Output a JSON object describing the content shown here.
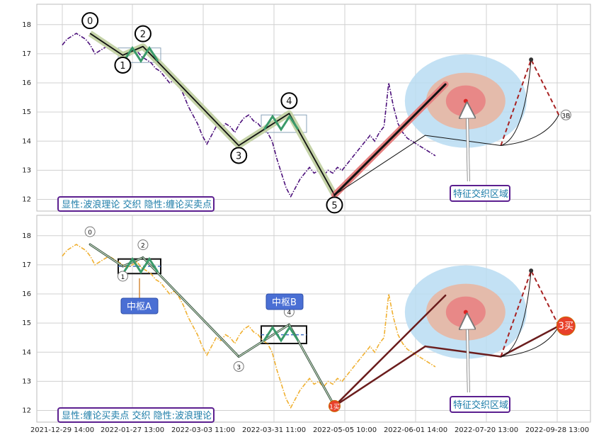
{
  "chart_data": [
    {
      "type": "line",
      "panel": "top",
      "title": "",
      "xlabel": "",
      "ylabel": "",
      "ylim": [
        11.6,
        18.7
      ],
      "y_ticks": [
        12,
        13,
        14,
        15,
        16,
        17,
        18
      ],
      "grid": true,
      "series": [
        {
          "kind": "price",
          "color": "#4b0f7a",
          "style": "dash-dot",
          "y": [
            17.3,
            17.5,
            17.6,
            17.7,
            17.6,
            17.5,
            17.3,
            17.0,
            17.1,
            17.2,
            17.3,
            17.2,
            17.1,
            17.0,
            16.9,
            17.0,
            17.1,
            16.9,
            16.8,
            16.7,
            16.5,
            16.4,
            16.2,
            16.0,
            16.1,
            15.9,
            15.6,
            15.2,
            14.9,
            14.6,
            14.2,
            13.9,
            14.2,
            14.5,
            14.4,
            14.6,
            14.5,
            14.3,
            14.6,
            14.8,
            14.9,
            14.7,
            14.6,
            14.4,
            14.3,
            14.0,
            13.4,
            12.9,
            12.4,
            12.1,
            12.4,
            12.7,
            12.9,
            13.1,
            12.9,
            13.0,
            12.8,
            13.0,
            12.9,
            13.1,
            13.0,
            13.2,
            13.4,
            13.6,
            13.8,
            14.0,
            14.2,
            14.0,
            14.3,
            14.5,
            16.0,
            15.2,
            14.6,
            14.3,
            14.1,
            14.0,
            13.9,
            13.8,
            13.7,
            13.6,
            13.5
          ]
        }
      ],
      "points": [
        {
          "label": "0",
          "x": 0.055,
          "y": 17.7
        },
        {
          "label": "1",
          "x": 0.12,
          "y": 16.95
        },
        {
          "label": "2",
          "x": 0.16,
          "y": 17.25
        },
        {
          "label": "3",
          "x": 0.35,
          "y": 13.85
        },
        {
          "label": "4",
          "x": 0.45,
          "y": 14.95
        },
        {
          "label": "5",
          "x": 0.54,
          "y": 12.15
        },
        {
          "label": "",
          "x": 0.76,
          "y": 15.95
        },
        {
          "label": "",
          "x": 0.87,
          "y": 13.85
        },
        {
          "label": "",
          "x": 0.93,
          "y": 16.8
        },
        {
          "label": "3B",
          "x": 0.985,
          "y": 14.9
        }
      ],
      "annotations": [
        {
          "text": "特征交织区域"
        },
        {
          "text": "显性:波浪理论 交织 隐性:缠论买卖点"
        }
      ]
    },
    {
      "type": "line",
      "panel": "bottom",
      "title": "",
      "xlabel": "",
      "ylabel": "",
      "ylim": [
        11.6,
        18.7
      ],
      "y_ticks": [
        12,
        13,
        14,
        15,
        16,
        17,
        18
      ],
      "grid": true,
      "x_ticks": [
        "2021-12-29 14:00",
        "2022-01-27 13:00",
        "2022-03-03 11:00",
        "2022-03-31 11:00",
        "2022-05-05 10:00",
        "2022-06-01 14:00",
        "2022-07-20 13:00",
        "2022-09-28 13:00"
      ],
      "series": [
        {
          "kind": "price",
          "color": "#f0b030",
          "style": "dash-dot",
          "y": [
            17.3,
            17.5,
            17.6,
            17.7,
            17.6,
            17.5,
            17.3,
            17.0,
            17.1,
            17.2,
            17.3,
            17.2,
            17.1,
            17.0,
            16.9,
            17.0,
            17.1,
            16.9,
            16.8,
            16.7,
            16.5,
            16.4,
            16.2,
            16.0,
            16.1,
            15.9,
            15.6,
            15.2,
            14.9,
            14.6,
            14.2,
            13.9,
            14.2,
            14.5,
            14.4,
            14.6,
            14.5,
            14.3,
            14.6,
            14.8,
            14.9,
            14.7,
            14.6,
            14.4,
            14.3,
            14.0,
            13.4,
            12.9,
            12.4,
            12.1,
            12.4,
            12.7,
            12.9,
            13.1,
            12.9,
            13.0,
            12.8,
            13.0,
            12.9,
            13.1,
            13.0,
            13.2,
            13.4,
            13.6,
            13.8,
            14.0,
            14.2,
            14.0,
            14.3,
            14.5,
            16.0,
            15.2,
            14.6,
            14.3,
            14.1,
            14.0,
            13.9,
            13.8,
            13.7,
            13.6,
            13.5
          ]
        }
      ],
      "points": [
        {
          "label": "0",
          "x": 0.055,
          "y": 17.7
        },
        {
          "label": "1",
          "x": 0.12,
          "y": 16.95
        },
        {
          "label": "2",
          "x": 0.16,
          "y": 17.25
        },
        {
          "label": "3",
          "x": 0.35,
          "y": 13.85
        },
        {
          "label": "4",
          "x": 0.45,
          "y": 14.95
        },
        {
          "label": "1买",
          "x": 0.54,
          "y": 12.15
        },
        {
          "label": "3买",
          "x": 0.985,
          "y": 14.9
        }
      ],
      "annotations": [
        {
          "text": "中枢A"
        },
        {
          "text": "中枢B"
        },
        {
          "text": "特征交织区域"
        },
        {
          "text": "显性:缠论买卖点 交织 隐性:波浪理论"
        }
      ]
    }
  ],
  "colors": {
    "purple_line": "#4b0f7a",
    "orange_line": "#f0b030",
    "green_band": "#c5d3a8",
    "red_band": "#e68080",
    "box_blue": "#4472c4",
    "circle_light": "#b9dcf2",
    "circle_mid": "#e8b7a3",
    "circle_core": "#e88383",
    "badge_red": "#e8402a"
  }
}
